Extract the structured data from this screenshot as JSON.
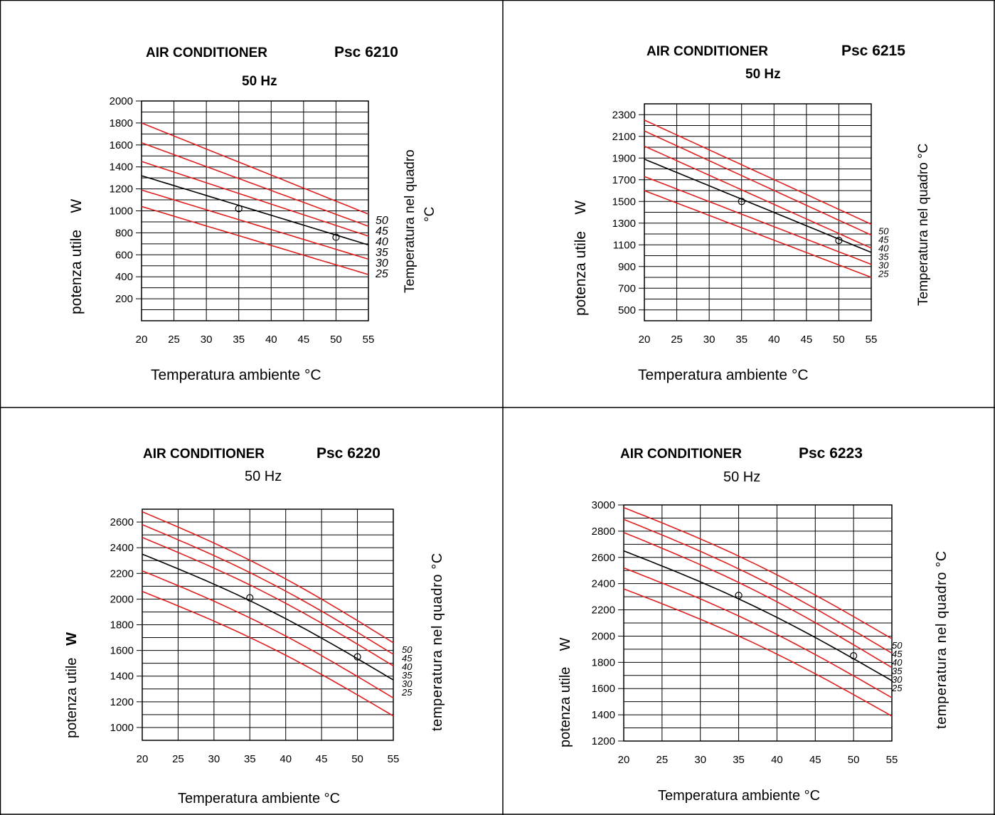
{
  "chart_data": [
    {
      "type": "line",
      "title": "AIR CONDITIONER",
      "model": "Psc 6210",
      "frequency": "50 Hz",
      "xlabel": "Temperatura ambiente °C",
      "ylabel_text": "potenza utile",
      "ylabel_unit": "W",
      "right_label": "Temperatura nel quadro",
      "right_label_unit": "°C",
      "xlim": [
        20,
        55
      ],
      "ylim": [
        0,
        2000
      ],
      "xticks": [
        "20",
        "25",
        "30",
        "35",
        "40",
        "45",
        "50",
        "55"
      ],
      "yticks": [
        "200",
        "400",
        "600",
        "800",
        "1000",
        "1200",
        "1400",
        "1600",
        "1800",
        "2000"
      ],
      "x": [
        20,
        55
      ],
      "series": [
        {
          "name": "50",
          "values": [
            1800,
            970
          ],
          "color": "#e02020"
        },
        {
          "name": "45",
          "values": [
            1620,
            860
          ],
          "color": "#e02020"
        },
        {
          "name": "40",
          "values": [
            1320,
            690
          ],
          "color": "#000000"
        },
        {
          "name": "35",
          "values": [
            1190,
            560
          ],
          "color": "#e02020"
        },
        {
          "name": "30",
          "values": [
            1040,
            420
          ],
          "color": "#e02020"
        },
        {
          "name": "25",
          "values": [
            1450,
            770
          ],
          "color": "#e02020"
        }
      ],
      "markers": [
        {
          "x": 35,
          "y": 1020
        },
        {
          "x": 50,
          "y": 760
        }
      ],
      "grid": true
    },
    {
      "type": "line",
      "title": "AIR CONDITIONER",
      "model": "Psc 6215",
      "frequency": "50 Hz",
      "xlabel": "Temperatura ambiente °C",
      "ylabel_text": "potenza utile",
      "ylabel_unit": "W",
      "right_label": "Temperatura nel quadro °C",
      "xlim": [
        20,
        55
      ],
      "ylim": [
        400,
        2400
      ],
      "xticks": [
        "20",
        "25",
        "30",
        "35",
        "40",
        "45",
        "50",
        "55"
      ],
      "yticks": [
        "500",
        "700",
        "900",
        "1100",
        "1300",
        "1500",
        "1700",
        "1900",
        "2100",
        "2300"
      ],
      "x": [
        20,
        55
      ],
      "series": [
        {
          "name": "50",
          "values": [
            2250,
            1290
          ],
          "color": "#e02020"
        },
        {
          "name": "45",
          "values": [
            2150,
            1190
          ],
          "color": "#e02020"
        },
        {
          "name": "40",
          "values": [
            2010,
            1070
          ],
          "color": "#e02020"
        },
        {
          "name": "35",
          "values": [
            1890,
            1030
          ],
          "color": "#000000"
        },
        {
          "name": "30",
          "values": [
            1730,
            920
          ],
          "color": "#e02020"
        },
        {
          "name": "25",
          "values": [
            1600,
            800
          ],
          "color": "#e02020"
        }
      ],
      "markers": [
        {
          "x": 35,
          "y": 1500
        },
        {
          "x": 50,
          "y": 1140
        }
      ],
      "grid": true
    },
    {
      "type": "line",
      "title": "AIR CONDITIONER",
      "model": "Psc 6220",
      "frequency": "50 Hz",
      "xlabel": "Temperatura ambiente °C",
      "ylabel_text": "potenza utile",
      "ylabel_unit": "W",
      "right_label": "temperatura nel quadro °C",
      "xlim": [
        20,
        55
      ],
      "ylim": [
        900,
        2700
      ],
      "xticks": [
        "20",
        "25",
        "30",
        "35",
        "40",
        "45",
        "50",
        "55"
      ],
      "yticks": [
        "1000",
        "1200",
        "1400",
        "1600",
        "1800",
        "2000",
        "2200",
        "2400",
        "2600"
      ],
      "x": [
        20,
        55
      ],
      "series": [
        {
          "name": "50",
          "values": [
            2680,
            1660
          ],
          "color": "#e02020"
        },
        {
          "name": "45",
          "values": [
            2580,
            1570
          ],
          "color": "#e02020"
        },
        {
          "name": "40",
          "values": [
            2480,
            1480
          ],
          "color": "#e02020"
        },
        {
          "name": "35",
          "values": [
            2350,
            1370
          ],
          "color": "#000000"
        },
        {
          "name": "30",
          "values": [
            2220,
            1230
          ],
          "color": "#e02020"
        },
        {
          "name": "25",
          "values": [
            2060,
            1090
          ],
          "color": "#e02020"
        }
      ],
      "markers": [
        {
          "x": 35,
          "y": 2010
        },
        {
          "x": 50,
          "y": 1550
        }
      ],
      "grid": true
    },
    {
      "type": "line",
      "title": "AIR CONDITIONER",
      "model": "Psc 6223",
      "frequency": "50 Hz",
      "xlabel": "Temperatura ambiente °C",
      "ylabel_text": "potenza utile",
      "ylabel_unit": "W",
      "right_label": "temperatura nel quadro °C",
      "xlim": [
        20,
        55
      ],
      "ylim": [
        1200,
        3000
      ],
      "xticks": [
        "20",
        "25",
        "30",
        "35",
        "40",
        "45",
        "50",
        "55"
      ],
      "yticks": [
        "1200",
        "1400",
        "1600",
        "1800",
        "2000",
        "2200",
        "2400",
        "2600",
        "2800",
        "3000"
      ],
      "x": [
        20,
        55
      ],
      "series": [
        {
          "name": "50",
          "values": [
            2980,
            1980
          ],
          "color": "#e02020"
        },
        {
          "name": "45",
          "values": [
            2890,
            1870
          ],
          "color": "#e02020"
        },
        {
          "name": "40",
          "values": [
            2790,
            1760
          ],
          "color": "#e02020"
        },
        {
          "name": "35",
          "values": [
            2650,
            1660
          ],
          "color": "#000000"
        },
        {
          "name": "30",
          "values": [
            2520,
            1530
          ],
          "color": "#e02020"
        },
        {
          "name": "25",
          "values": [
            2360,
            1390
          ],
          "color": "#e02020"
        }
      ],
      "markers": [
        {
          "x": 35,
          "y": 2310
        },
        {
          "x": 50,
          "y": 1850
        }
      ],
      "grid": true
    }
  ]
}
